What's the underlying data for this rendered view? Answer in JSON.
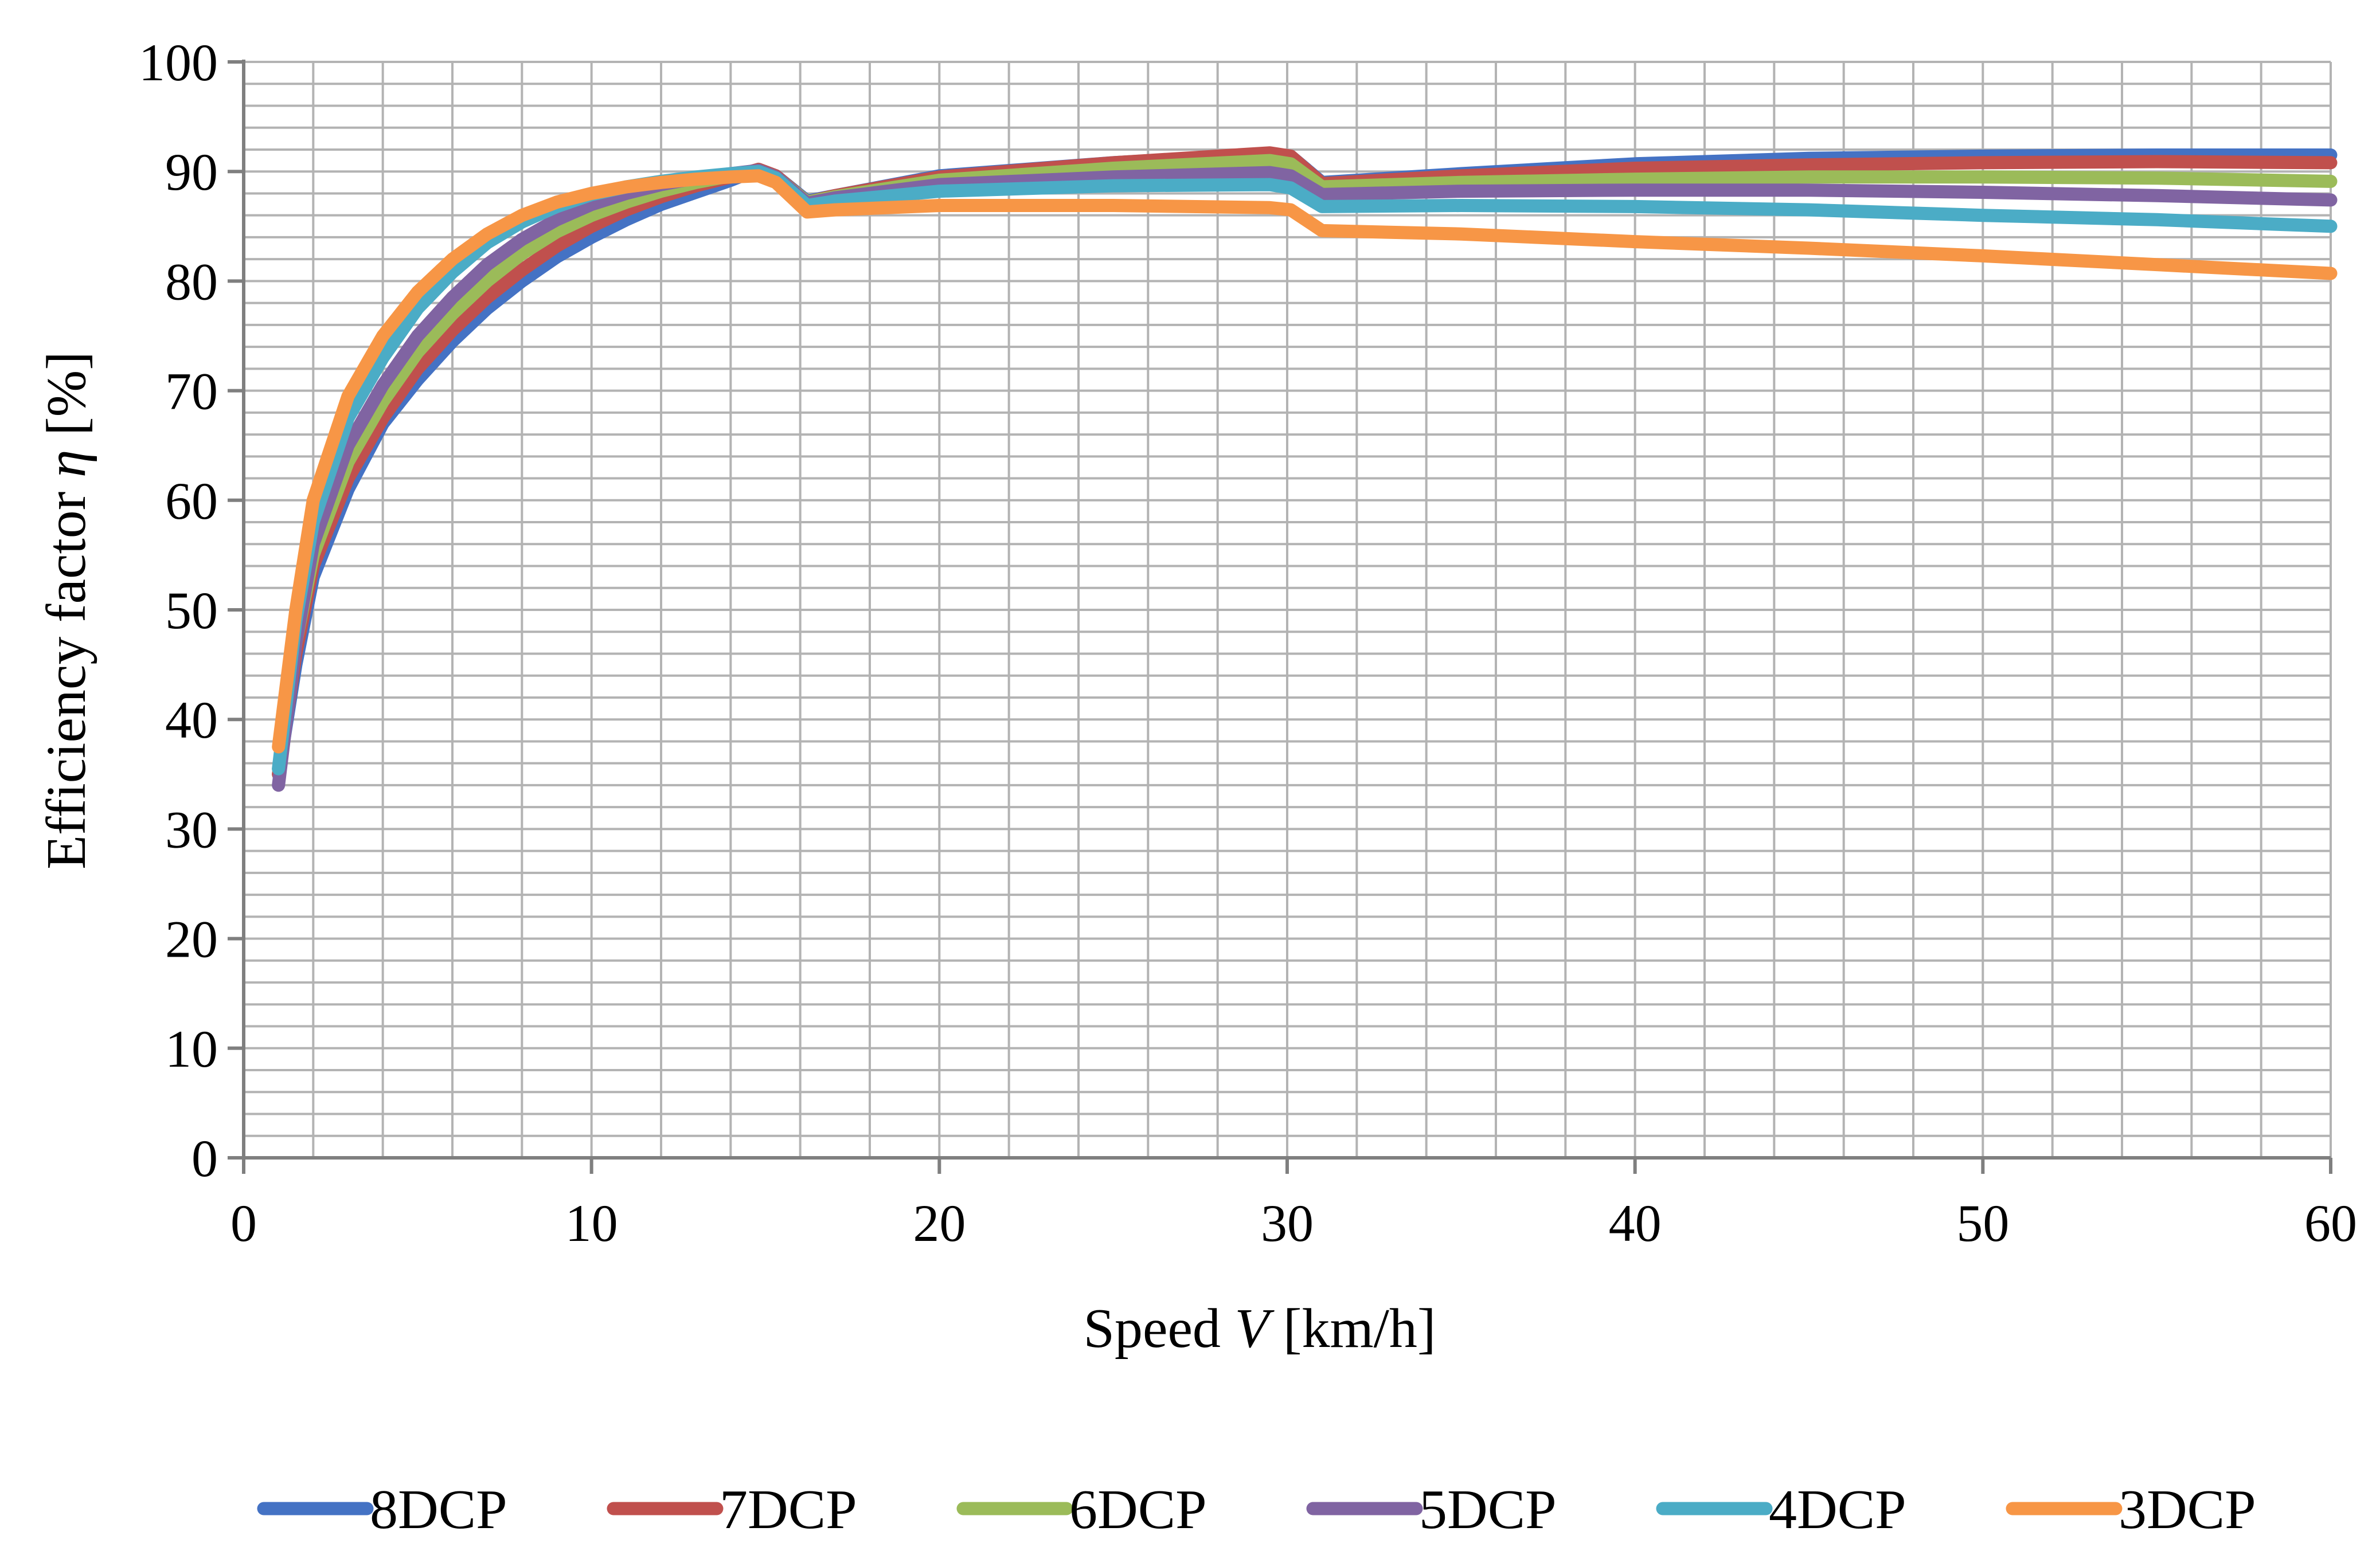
{
  "chart_data": {
    "type": "line",
    "title": "",
    "xlabel": "Speed V [km/h]",
    "xlabel_parts": [
      "Speed ",
      "V",
      " [km/h]"
    ],
    "ylabel": "Efficiency factor η [%]",
    "ylabel_parts": [
      "Efficiency  factor ",
      "η",
      " [%]"
    ],
    "xlim": [
      0,
      60
    ],
    "ylim": [
      0,
      100
    ],
    "x_ticks": [
      0,
      10,
      20,
      30,
      40,
      50,
      60
    ],
    "y_ticks": [
      0,
      10,
      20,
      30,
      40,
      50,
      60,
      70,
      80,
      90,
      100
    ],
    "x_minor_step": 2,
    "y_minor_step": 2,
    "grid": true,
    "legend_position": "bottom",
    "series": [
      {
        "name": "8DCP",
        "color": "#4472C4",
        "points": [
          [
            1,
            35
          ],
          [
            1.5,
            45
          ],
          [
            2,
            53
          ],
          [
            3,
            61
          ],
          [
            4,
            67
          ],
          [
            5,
            71
          ],
          [
            6,
            74.5
          ],
          [
            7,
            77.5
          ],
          [
            8,
            80
          ],
          [
            9,
            82.2
          ],
          [
            10,
            84
          ],
          [
            11,
            85.6
          ],
          [
            12,
            87
          ],
          [
            13,
            88.1
          ],
          [
            14,
            89.2
          ],
          [
            14.8,
            90.2
          ],
          [
            15.3,
            89.6
          ],
          [
            16.2,
            87.3
          ],
          [
            17,
            87.8
          ],
          [
            20,
            89.6
          ],
          [
            25,
            90.8
          ],
          [
            29.5,
            91.6
          ],
          [
            30.1,
            91.4
          ],
          [
            31,
            89
          ],
          [
            35,
            89.8
          ],
          [
            40,
            90.7
          ],
          [
            45,
            91.2
          ],
          [
            50,
            91.4
          ],
          [
            55,
            91.5
          ],
          [
            60,
            91.5
          ]
        ]
      },
      {
        "name": "7DCP",
        "color": "#C0504D",
        "points": [
          [
            1,
            35
          ],
          [
            1.5,
            46
          ],
          [
            2,
            54
          ],
          [
            3,
            62
          ],
          [
            4,
            67.5
          ],
          [
            5,
            72
          ],
          [
            6,
            75.5
          ],
          [
            7,
            78.5
          ],
          [
            8,
            81
          ],
          [
            9,
            83.2
          ],
          [
            10,
            85
          ],
          [
            11,
            86.5
          ],
          [
            12,
            87.7
          ],
          [
            13,
            88.7
          ],
          [
            14,
            89.5
          ],
          [
            14.8,
            90.2
          ],
          [
            15.3,
            89.6
          ],
          [
            16.2,
            87.2
          ],
          [
            17,
            87.8
          ],
          [
            20,
            89.5
          ],
          [
            25,
            90.8
          ],
          [
            29.5,
            91.7
          ],
          [
            30.1,
            91.4
          ],
          [
            31,
            88.9
          ],
          [
            35,
            89.6
          ],
          [
            40,
            90.3
          ],
          [
            45,
            90.6
          ],
          [
            50,
            90.8
          ],
          [
            55,
            90.9
          ],
          [
            60,
            90.8
          ]
        ]
      },
      {
        "name": "6DCP",
        "color": "#9BBB59",
        "points": [
          [
            1,
            35.5
          ],
          [
            1.5,
            47
          ],
          [
            2,
            55
          ],
          [
            3,
            63.5
          ],
          [
            4,
            69
          ],
          [
            5,
            73.5
          ],
          [
            6,
            77
          ],
          [
            7,
            80
          ],
          [
            8,
            82.5
          ],
          [
            9,
            84.5
          ],
          [
            10,
            86
          ],
          [
            11,
            87.2
          ],
          [
            12,
            88.2
          ],
          [
            13,
            89
          ],
          [
            14,
            89.6
          ],
          [
            14.8,
            90.1
          ],
          [
            15.3,
            89.5
          ],
          [
            16.2,
            87.2
          ],
          [
            17,
            87.7
          ],
          [
            20,
            89.2
          ],
          [
            25,
            90.3
          ],
          [
            29.5,
            91
          ],
          [
            30.1,
            90.7
          ],
          [
            31,
            88.6
          ],
          [
            35,
            89
          ],
          [
            40,
            89.3
          ],
          [
            45,
            89.5
          ],
          [
            50,
            89.5
          ],
          [
            55,
            89.4
          ],
          [
            60,
            89.1
          ]
        ]
      },
      {
        "name": "5DCP",
        "color": "#8064A2",
        "points": [
          [
            1,
            34
          ],
          [
            1.5,
            47
          ],
          [
            2,
            56
          ],
          [
            3,
            65
          ],
          [
            4,
            70.5
          ],
          [
            5,
            75
          ],
          [
            6,
            78.5
          ],
          [
            7,
            81.5
          ],
          [
            8,
            83.8
          ],
          [
            9,
            85.6
          ],
          [
            10,
            87
          ],
          [
            11,
            88
          ],
          [
            12,
            88.8
          ],
          [
            13,
            89.4
          ],
          [
            14,
            89.8
          ],
          [
            14.8,
            90.1
          ],
          [
            15.3,
            89.5
          ],
          [
            16.2,
            87.1
          ],
          [
            17,
            87.6
          ],
          [
            20,
            88.8
          ],
          [
            25,
            89.5
          ],
          [
            29.5,
            89.9
          ],
          [
            30.1,
            89.6
          ],
          [
            31,
            87.9
          ],
          [
            35,
            88.2
          ],
          [
            40,
            88.3
          ],
          [
            45,
            88.3
          ],
          [
            50,
            88.1
          ],
          [
            55,
            87.8
          ],
          [
            60,
            87.4
          ]
        ]
      },
      {
        "name": "4DCP",
        "color": "#4BACC6",
        "points": [
          [
            1,
            35.5
          ],
          [
            1.5,
            49
          ],
          [
            2,
            58
          ],
          [
            3,
            67.5
          ],
          [
            4,
            73
          ],
          [
            5,
            77.5
          ],
          [
            6,
            80.8
          ],
          [
            7,
            83.5
          ],
          [
            8,
            85.4
          ],
          [
            9,
            86.8
          ],
          [
            10,
            87.9
          ],
          [
            11,
            88.6
          ],
          [
            12,
            89.1
          ],
          [
            13,
            89.5
          ],
          [
            14,
            89.8
          ],
          [
            14.8,
            90
          ],
          [
            15.3,
            89.4
          ],
          [
            16.2,
            86.9
          ],
          [
            17,
            87.3
          ],
          [
            20,
            88.2
          ],
          [
            25,
            88.7
          ],
          [
            29.5,
            88.8
          ],
          [
            30.1,
            88.5
          ],
          [
            31,
            86.8
          ],
          [
            35,
            86.9
          ],
          [
            40,
            86.8
          ],
          [
            45,
            86.5
          ],
          [
            50,
            86
          ],
          [
            55,
            85.6
          ],
          [
            60,
            85
          ]
        ]
      },
      {
        "name": "3DCP",
        "color": "#F79646",
        "points": [
          [
            1,
            37.5
          ],
          [
            1.5,
            50
          ],
          [
            2,
            60
          ],
          [
            3,
            69.5
          ],
          [
            4,
            75
          ],
          [
            5,
            79
          ],
          [
            6,
            82
          ],
          [
            7,
            84.3
          ],
          [
            8,
            86
          ],
          [
            9,
            87.2
          ],
          [
            10,
            88
          ],
          [
            11,
            88.6
          ],
          [
            12,
            89
          ],
          [
            13,
            89.3
          ],
          [
            14,
            89.5
          ],
          [
            14.8,
            89.6
          ],
          [
            15.3,
            89
          ],
          [
            16.2,
            86.3
          ],
          [
            17,
            86.5
          ],
          [
            20,
            86.9
          ],
          [
            25,
            86.9
          ],
          [
            29.5,
            86.7
          ],
          [
            30.1,
            86.5
          ],
          [
            31,
            84.6
          ],
          [
            35,
            84.3
          ],
          [
            40,
            83.6
          ],
          [
            45,
            83
          ],
          [
            50,
            82.3
          ],
          [
            55,
            81.5
          ],
          [
            60,
            80.7
          ]
        ]
      }
    ]
  }
}
